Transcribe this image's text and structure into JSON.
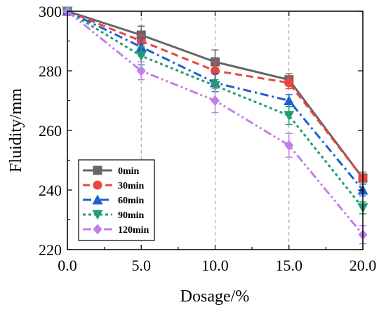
{
  "chart_data": {
    "type": "line",
    "title": "",
    "xlabel": "Dosage/%",
    "ylabel": "Fluidity/mm",
    "xlim": [
      0,
      20
    ],
    "ylim": [
      220,
      300
    ],
    "x": [
      0,
      5,
      10,
      15,
      20
    ],
    "x_tick_labels": [
      "0.0",
      "5.0",
      "10.0",
      "15.0",
      "20.0"
    ],
    "y_ticks": [
      220,
      240,
      260,
      280,
      300
    ],
    "y_tick_labels": [
      "220",
      "240",
      "260",
      "280",
      "300"
    ],
    "grid": "vertical-dashed",
    "legend_position": "bottom-left",
    "series": [
      {
        "name": "0min",
        "values": [
          300,
          292,
          283,
          277,
          244
        ],
        "errors": [
          0,
          3,
          4,
          2,
          2
        ],
        "color": "#666666",
        "marker": "square",
        "dash": "solid"
      },
      {
        "name": "30min",
        "values": [
          300,
          290,
          280,
          276,
          244
        ],
        "errors": [
          0,
          2,
          3,
          2,
          1
        ],
        "color": "#e8473f",
        "marker": "circle",
        "dash": "dashed"
      },
      {
        "name": "60min",
        "values": [
          300,
          288,
          276,
          270,
          240
        ],
        "errors": [
          0,
          3,
          3,
          2,
          2
        ],
        "color": "#1f5fd0",
        "marker": "triangle-up",
        "dash": "dashdot"
      },
      {
        "name": "90min",
        "values": [
          300,
          285,
          275,
          265,
          234
        ],
        "errors": [
          0,
          3,
          2,
          3,
          2
        ],
        "color": "#1f9e73",
        "marker": "triangle-down",
        "dash": "dotted"
      },
      {
        "name": "120min",
        "values": [
          300,
          280,
          270,
          255,
          225
        ],
        "errors": [
          0,
          3,
          4,
          4,
          3
        ],
        "color": "#c47ee8",
        "marker": "diamond",
        "dash": "dashdotdot"
      }
    ]
  }
}
